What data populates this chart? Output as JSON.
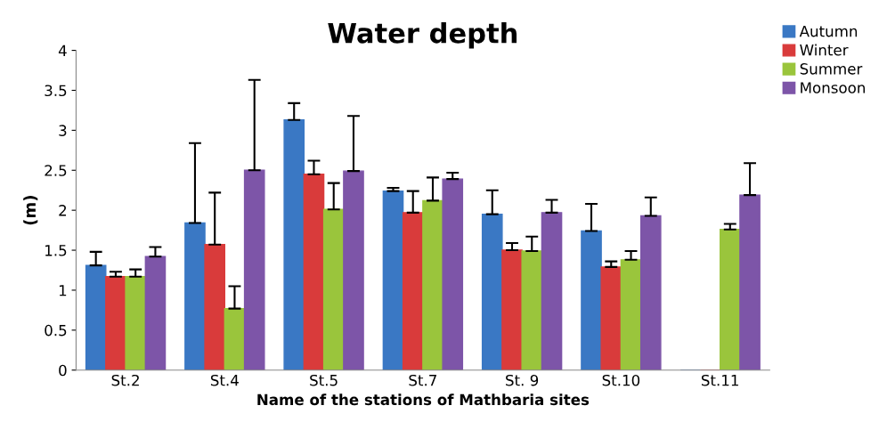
{
  "chart_data": {
    "type": "bar",
    "title": "Water depth",
    "xlabel": "Name of the stations of Mathbaria sites",
    "ylabel": "(m)",
    "categories": [
      "St.2",
      "St.4",
      "St.5",
      "St.7",
      "St. 9",
      "St.10",
      "St.11"
    ],
    "series": [
      {
        "name": "Autumn",
        "color": "#3a78c4",
        "values": [
          1.31,
          1.84,
          3.13,
          2.24,
          1.95,
          1.74,
          0
        ],
        "errors": [
          [
            1.31,
            1.48
          ],
          [
            1.84,
            2.84
          ],
          [
            3.13,
            3.34
          ],
          [
            2.24,
            2.28
          ],
          [
            1.95,
            2.25
          ],
          [
            1.74,
            2.08
          ],
          null
        ]
      },
      {
        "name": "Winter",
        "color": "#d93b3b",
        "values": [
          1.17,
          1.57,
          2.45,
          1.97,
          1.5,
          1.29,
          0
        ],
        "errors": [
          [
            1.17,
            1.23
          ],
          [
            1.57,
            2.22
          ],
          [
            2.45,
            2.62
          ],
          [
            1.97,
            2.24
          ],
          [
            1.5,
            1.59
          ],
          [
            1.29,
            1.36
          ],
          null
        ]
      },
      {
        "name": "Summer",
        "color": "#9ac53c",
        "values": [
          1.17,
          0.77,
          2.01,
          2.12,
          1.49,
          1.38,
          1.76
        ],
        "errors": [
          [
            1.17,
            1.26
          ],
          [
            0.77,
            1.05
          ],
          [
            2.01,
            2.34
          ],
          [
            2.12,
            2.41
          ],
          [
            1.49,
            1.67
          ],
          [
            1.38,
            1.49
          ],
          [
            1.76,
            1.83
          ]
        ]
      },
      {
        "name": "Monsoon",
        "color": "#7d55a8",
        "values": [
          1.42,
          2.5,
          2.49,
          2.39,
          1.97,
          1.93,
          2.19
        ],
        "errors": [
          [
            1.42,
            1.54
          ],
          [
            2.5,
            3.63
          ],
          [
            2.49,
            3.18
          ],
          [
            2.39,
            2.47
          ],
          [
            1.97,
            2.13
          ],
          [
            1.93,
            2.16
          ],
          [
            2.19,
            2.59
          ]
        ]
      }
    ],
    "ylim": [
      0,
      4
    ],
    "yticks": [
      0,
      0.5,
      1,
      1.5,
      2,
      2.5,
      3,
      3.5,
      4
    ],
    "grid": false,
    "legend": "top right"
  }
}
